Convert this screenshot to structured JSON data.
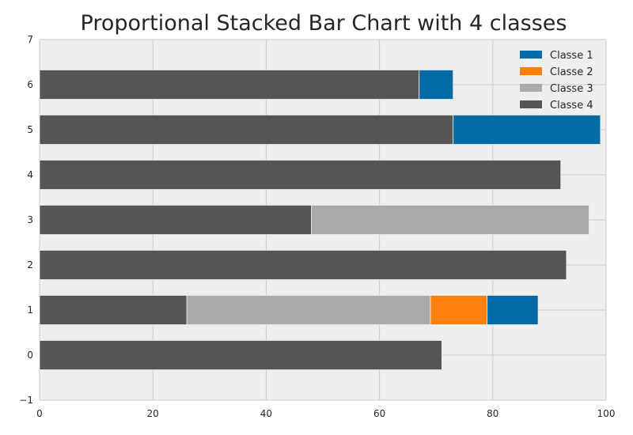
{
  "chart_data": {
    "type": "bar",
    "orientation": "horizontal",
    "stacked": true,
    "title": "Proportional Stacked Bar Chart with 4 classes",
    "xlabel": "",
    "ylabel": "",
    "xlim": [
      0,
      100
    ],
    "ylim": [
      -1,
      7
    ],
    "x_ticks": [
      "0",
      "20",
      "40",
      "60",
      "80",
      "100"
    ],
    "y_ticks": [
      "−1",
      "0",
      "1",
      "2",
      "3",
      "4",
      "5",
      "6",
      "7"
    ],
    "grid": true,
    "legend_position": "top-right",
    "categories": [
      "0",
      "1",
      "2",
      "3",
      "4",
      "5",
      "6"
    ],
    "series": [
      {
        "name": "Classe 4",
        "color": "#555555",
        "values": [
          71,
          26,
          93,
          48,
          92,
          73,
          67
        ]
      },
      {
        "name": "Classe 3",
        "color": "#aaaaaa",
        "values": [
          0,
          43,
          0,
          49,
          0,
          0,
          0
        ]
      },
      {
        "name": "Classe 2",
        "color": "#ff7f0e",
        "values": [
          0,
          10,
          0,
          0,
          0,
          0,
          0
        ]
      },
      {
        "name": "Classe 1",
        "color": "#006ba4",
        "values": [
          0,
          9,
          0,
          0,
          0,
          26,
          6
        ]
      }
    ],
    "legend_order": [
      "Classe 1",
      "Classe 2",
      "Classe 3",
      "Classe 4"
    ]
  }
}
